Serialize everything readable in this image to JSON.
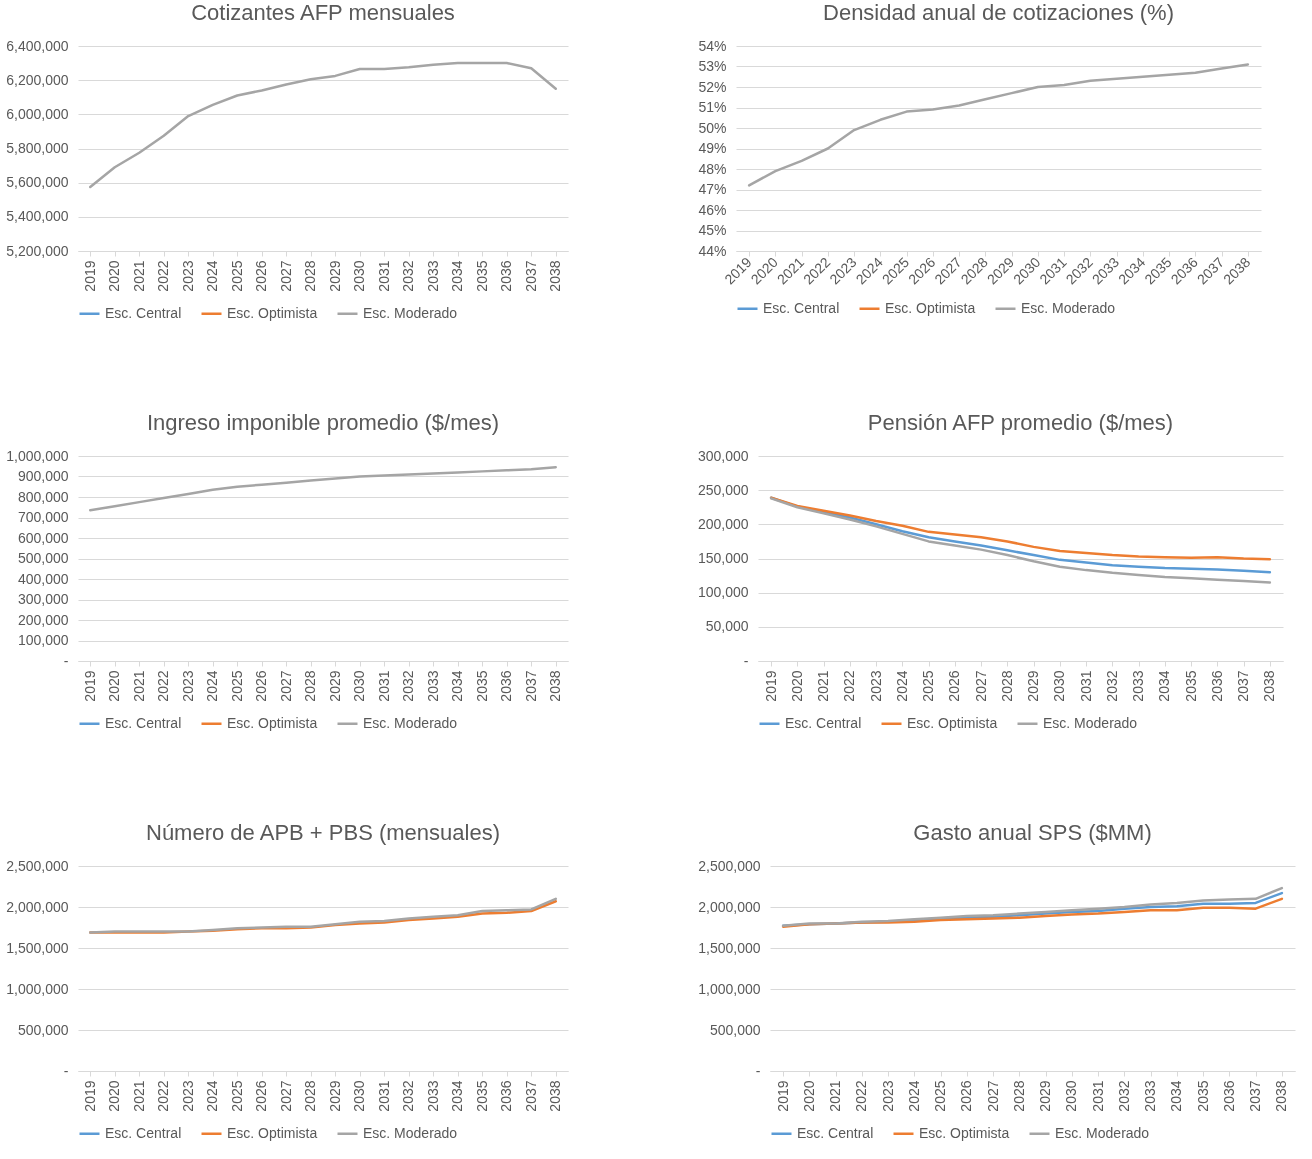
{
  "chart_data": [
    {
      "type": "line",
      "title": "Cotizantes AFP mensuales",
      "categories": [
        "2019",
        "2020",
        "2021",
        "2022",
        "2023",
        "2024",
        "2025",
        "2026",
        "2027",
        "2028",
        "2029",
        "2030",
        "2031",
        "2032",
        "2033",
        "2034",
        "2035",
        "2036",
        "2037",
        "2038"
      ],
      "ylim": [
        5200000,
        6400000
      ],
      "yticks": [
        {
          "value": 5200000,
          "label": "5,200,000"
        },
        {
          "value": 5400000,
          "label": "5,400,000"
        },
        {
          "value": 5600000,
          "label": "5,600,000"
        },
        {
          "value": 5800000,
          "label": "5,800,000"
        },
        {
          "value": 6000000,
          "label": "6,000,000"
        },
        {
          "value": 6200000,
          "label": "6,200,000"
        },
        {
          "value": 6400000,
          "label": "6,400,000"
        }
      ],
      "grid": "y",
      "legend": "bottom",
      "series": [
        {
          "name": "Esc. Central",
          "color": "#5b9bd5",
          "values": [
            null,
            null,
            null,
            null,
            null,
            null,
            null,
            null,
            null,
            null,
            null,
            null,
            null,
            null,
            null,
            null,
            null,
            null,
            null,
            null
          ]
        },
        {
          "name": "Esc. Optimista",
          "color": "#ed7d31",
          "values": [
            null,
            null,
            null,
            null,
            null,
            null,
            null,
            null,
            null,
            null,
            null,
            null,
            null,
            null,
            null,
            null,
            null,
            null,
            null,
            null
          ]
        },
        {
          "name": "Esc. Moderado",
          "color": "#a5a5a5",
          "values": [
            5575000,
            5690000,
            5775000,
            5875000,
            5990000,
            6055000,
            6110000,
            6140000,
            6175000,
            6205000,
            6225000,
            6265000,
            6265000,
            6275000,
            6290000,
            6300000,
            6300000,
            6300000,
            6270000,
            6150000
          ]
        }
      ]
    },
    {
      "type": "line",
      "title": "Densidad anual de cotizaciones (%)",
      "categories": [
        "2019",
        "2020",
        "2021",
        "2022",
        "2023",
        "2024",
        "2025",
        "2026",
        "2027",
        "2028",
        "2029",
        "2030",
        "2031",
        "2032",
        "2033",
        "2034",
        "2035",
        "2036",
        "2037",
        "2038"
      ],
      "ylim": [
        44,
        54
      ],
      "yticks": [
        {
          "value": 44,
          "label": "44%"
        },
        {
          "value": 45,
          "label": "45%"
        },
        {
          "value": 46,
          "label": "46%"
        },
        {
          "value": 47,
          "label": "47%"
        },
        {
          "value": 48,
          "label": "48%"
        },
        {
          "value": 49,
          "label": "49%"
        },
        {
          "value": 50,
          "label": "50%"
        },
        {
          "value": 51,
          "label": "51%"
        },
        {
          "value": 52,
          "label": "52%"
        },
        {
          "value": 53,
          "label": "53%"
        },
        {
          "value": 54,
          "label": "54%"
        }
      ],
      "grid": "y",
      "legend": "bottom",
      "series": [
        {
          "name": "Esc. Central",
          "color": "#5b9bd5",
          "values": [
            null,
            null,
            null,
            null,
            null,
            null,
            null,
            null,
            null,
            null,
            null,
            null,
            null,
            null,
            null,
            null,
            null,
            null,
            null,
            null
          ]
        },
        {
          "name": "Esc. Optimista",
          "color": "#ed7d31",
          "values": [
            null,
            null,
            null,
            null,
            null,
            null,
            null,
            null,
            null,
            null,
            null,
            null,
            null,
            null,
            null,
            null,
            null,
            null,
            null,
            null
          ]
        },
        {
          "name": "Esc. Moderado",
          "color": "#a5a5a5",
          "values": [
            47.2,
            47.9,
            48.4,
            49.0,
            49.9,
            50.4,
            50.8,
            50.9,
            51.1,
            51.4,
            51.7,
            52.0,
            52.1,
            52.3,
            52.4,
            52.5,
            52.6,
            52.7,
            52.9,
            53.1
          ]
        }
      ]
    },
    {
      "type": "line",
      "title": "Ingreso imponible promedio ($/mes)",
      "categories": [
        "2019",
        "2020",
        "2021",
        "2022",
        "2023",
        "2024",
        "2025",
        "2026",
        "2027",
        "2028",
        "2029",
        "2030",
        "2031",
        "2032",
        "2033",
        "2034",
        "2035",
        "2036",
        "2037",
        "2038"
      ],
      "ylim": [
        0,
        1000000
      ],
      "yticks": [
        {
          "value": 0,
          "label": "-"
        },
        {
          "value": 100000,
          "label": "100,000"
        },
        {
          "value": 200000,
          "label": "200,000"
        },
        {
          "value": 300000,
          "label": "300,000"
        },
        {
          "value": 400000,
          "label": "400,000"
        },
        {
          "value": 500000,
          "label": "500,000"
        },
        {
          "value": 600000,
          "label": "600,000"
        },
        {
          "value": 700000,
          "label": "700,000"
        },
        {
          "value": 800000,
          "label": "800,000"
        },
        {
          "value": 900000,
          "label": "900,000"
        },
        {
          "value": 1000000,
          "label": "1,000,000"
        }
      ],
      "grid": "y",
      "legend": "bottom",
      "series": [
        {
          "name": "Esc. Central",
          "color": "#5b9bd5",
          "values": [
            null,
            null,
            null,
            null,
            null,
            null,
            null,
            null,
            null,
            null,
            null,
            null,
            null,
            null,
            null,
            null,
            null,
            null,
            null,
            null
          ]
        },
        {
          "name": "Esc. Optimista",
          "color": "#ed7d31",
          "values": [
            null,
            null,
            null,
            null,
            null,
            null,
            null,
            null,
            null,
            null,
            null,
            null,
            null,
            null,
            null,
            null,
            null,
            null,
            null,
            null
          ]
        },
        {
          "name": "Esc. Moderado",
          "color": "#a5a5a5",
          "values": [
            735000,
            755000,
            775000,
            795000,
            815000,
            835000,
            850000,
            860000,
            870000,
            880000,
            890000,
            900000,
            905000,
            910000,
            915000,
            920000,
            925000,
            930000,
            935000,
            945000
          ]
        }
      ]
    },
    {
      "type": "line",
      "title": "Pensión AFP promedio ($/mes)",
      "categories": [
        "2019",
        "2020",
        "2021",
        "2022",
        "2023",
        "2024",
        "2025",
        "2026",
        "2027",
        "2028",
        "2029",
        "2030",
        "2031",
        "2032",
        "2033",
        "2034",
        "2035",
        "2036",
        "2037",
        "2038"
      ],
      "ylim": [
        0,
        300000
      ],
      "yticks": [
        {
          "value": 0,
          "label": "-"
        },
        {
          "value": 50000,
          "label": "50,000"
        },
        {
          "value": 100000,
          "label": "100,000"
        },
        {
          "value": 150000,
          "label": "150,000"
        },
        {
          "value": 200000,
          "label": "200,000"
        },
        {
          "value": 250000,
          "label": "250,000"
        },
        {
          "value": 300000,
          "label": "300,000"
        }
      ],
      "grid": "y",
      "legend": "bottom",
      "series": [
        {
          "name": "Esc. Central",
          "color": "#5b9bd5",
          "values": [
            239000,
            226000,
            218000,
            210000,
            200000,
            190000,
            181000,
            175000,
            169000,
            162000,
            155000,
            148000,
            144000,
            140000,
            138000,
            136000,
            135000,
            134000,
            132000,
            130000
          ]
        },
        {
          "name": "Esc. Optimista",
          "color": "#ed7d31",
          "values": [
            239000,
            227000,
            220000,
            213000,
            205000,
            198000,
            189000,
            185000,
            181000,
            175000,
            167000,
            161000,
            158000,
            155000,
            153000,
            152000,
            151000,
            152000,
            150000,
            149000
          ]
        },
        {
          "name": "Esc. Moderado",
          "color": "#a5a5a5",
          "values": [
            238000,
            225000,
            216000,
            207000,
            197000,
            186000,
            175000,
            169000,
            163000,
            155000,
            146000,
            138000,
            133000,
            129000,
            126000,
            123000,
            121000,
            119000,
            117000,
            115000
          ]
        }
      ]
    },
    {
      "type": "line",
      "title": "Número de APB + PBS (mensuales)",
      "categories": [
        "2019",
        "2020",
        "2021",
        "2022",
        "2023",
        "2024",
        "2025",
        "2026",
        "2027",
        "2028",
        "2029",
        "2030",
        "2031",
        "2032",
        "2033",
        "2034",
        "2035",
        "2036",
        "2037",
        "2038"
      ],
      "ylim": [
        0,
        2500000
      ],
      "yticks": [
        {
          "value": 0,
          "label": "-"
        },
        {
          "value": 500000,
          "label": "500,000"
        },
        {
          "value": 1000000,
          "label": "1,000,000"
        },
        {
          "value": 1500000,
          "label": "1,500,000"
        },
        {
          "value": 2000000,
          "label": "2,000,000"
        },
        {
          "value": 2500000,
          "label": "2,500,000"
        }
      ],
      "grid": "y",
      "legend": "bottom",
      "series": [
        {
          "name": "Esc. Central",
          "color": "#5b9bd5",
          "values": [
            null,
            null,
            null,
            null,
            null,
            null,
            null,
            null,
            null,
            null,
            null,
            null,
            null,
            null,
            null,
            null,
            null,
            null,
            null,
            null
          ]
        },
        {
          "name": "Esc. Optimista",
          "color": "#ed7d31",
          "values": [
            1690000,
            1690000,
            1690000,
            1690000,
            1700000,
            1710000,
            1730000,
            1740000,
            1740000,
            1750000,
            1780000,
            1800000,
            1810000,
            1840000,
            1860000,
            1880000,
            1920000,
            1930000,
            1950000,
            2070000
          ]
        },
        {
          "name": "Esc. Moderado",
          "color": "#a5a5a5",
          "values": [
            1690000,
            1700000,
            1700000,
            1700000,
            1700000,
            1720000,
            1740000,
            1750000,
            1760000,
            1760000,
            1790000,
            1820000,
            1830000,
            1860000,
            1880000,
            1900000,
            1950000,
            1960000,
            1970000,
            2100000
          ]
        }
      ]
    },
    {
      "type": "line",
      "title": "Gasto anual SPS ($MM)",
      "categories": [
        "2019",
        "2020",
        "2021",
        "2022",
        "2023",
        "2024",
        "2025",
        "2026",
        "2027",
        "2028",
        "2029",
        "2030",
        "2031",
        "2032",
        "2033",
        "2034",
        "2035",
        "2036",
        "2037",
        "2038"
      ],
      "ylim": [
        0,
        2500000
      ],
      "yticks": [
        {
          "value": 0,
          "label": "-"
        },
        {
          "value": 500000,
          "label": "500,000"
        },
        {
          "value": 1000000,
          "label": "1,000,000"
        },
        {
          "value": 1500000,
          "label": "1,500,000"
        },
        {
          "value": 2000000,
          "label": "2,000,000"
        },
        {
          "value": 2500000,
          "label": "2,500,000"
        }
      ],
      "grid": "y",
      "legend": "bottom",
      "series": [
        {
          "name": "Esc. Central",
          "color": "#5b9bd5",
          "values": [
            1770000,
            1790000,
            1800000,
            1810000,
            1820000,
            1840000,
            1860000,
            1870000,
            1880000,
            1900000,
            1920000,
            1940000,
            1950000,
            1980000,
            2000000,
            2010000,
            2040000,
            2040000,
            2050000,
            2170000
          ]
        },
        {
          "name": "Esc. Optimista",
          "color": "#ed7d31",
          "values": [
            1760000,
            1790000,
            1800000,
            1810000,
            1810000,
            1820000,
            1840000,
            1850000,
            1860000,
            1870000,
            1890000,
            1910000,
            1920000,
            1940000,
            1960000,
            1960000,
            1990000,
            1990000,
            1980000,
            2100000
          ]
        },
        {
          "name": "Esc. Moderado",
          "color": "#a5a5a5",
          "values": [
            1770000,
            1800000,
            1800000,
            1820000,
            1830000,
            1850000,
            1870000,
            1890000,
            1900000,
            1920000,
            1940000,
            1960000,
            1980000,
            2000000,
            2030000,
            2050000,
            2080000,
            2090000,
            2100000,
            2230000
          ]
        }
      ]
    }
  ]
}
